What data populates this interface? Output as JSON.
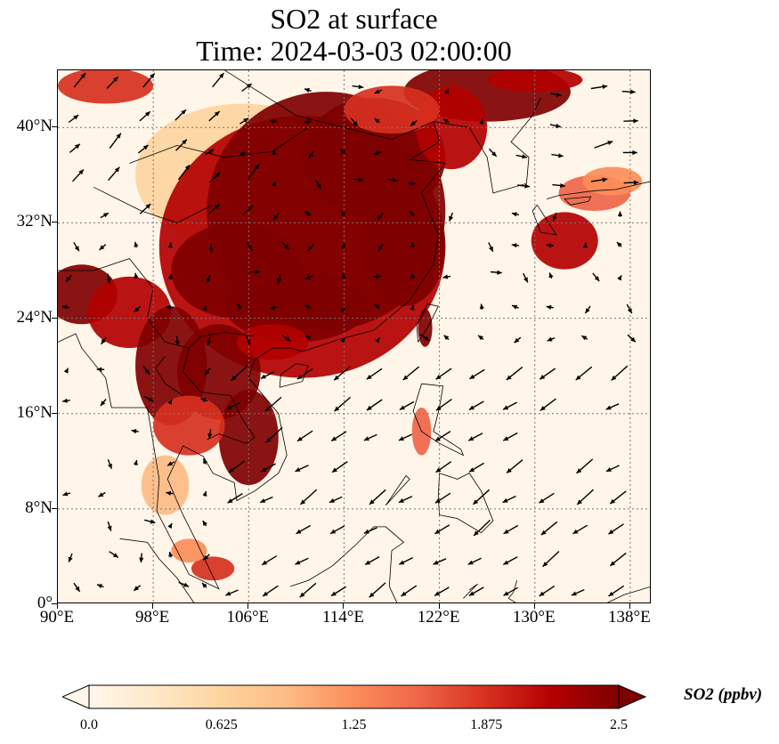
{
  "title": {
    "line1": "SO2 at surface",
    "line2": "Time: 2024-03-03 02:00:00"
  },
  "map": {
    "lon_range": [
      90,
      139.8
    ],
    "lat_range": [
      0,
      44.8
    ],
    "lon_ticks": [
      "90°E",
      "98°E",
      "106°E",
      "114°E",
      "122°E",
      "130°E",
      "138°E"
    ],
    "lon_tick_values": [
      90,
      98,
      106,
      114,
      122,
      130,
      138
    ],
    "lat_ticks": [
      "0°",
      "8°N",
      "16°N",
      "24°N",
      "32°N",
      "40°N"
    ],
    "lat_tick_values": [
      0,
      8,
      16,
      24,
      32,
      40
    ],
    "gridlines": true,
    "field": "SO2 surface concentration",
    "wind_vectors": true
  },
  "colorbar": {
    "label": "SO2 (ppbv)",
    "ticks": [
      "0.0",
      "0.625",
      "1.25",
      "1.875",
      "2.5"
    ],
    "tick_values": [
      0,
      0.625,
      1.25,
      1.875,
      2.5
    ],
    "colormap": "OrRd",
    "colors": [
      "#fff7ec",
      "#fee8c8",
      "#fdd49e",
      "#fdbb84",
      "#fc8d59",
      "#ef6548",
      "#d7301f",
      "#b30000",
      "#7f0000"
    ],
    "extend": "both"
  }
}
